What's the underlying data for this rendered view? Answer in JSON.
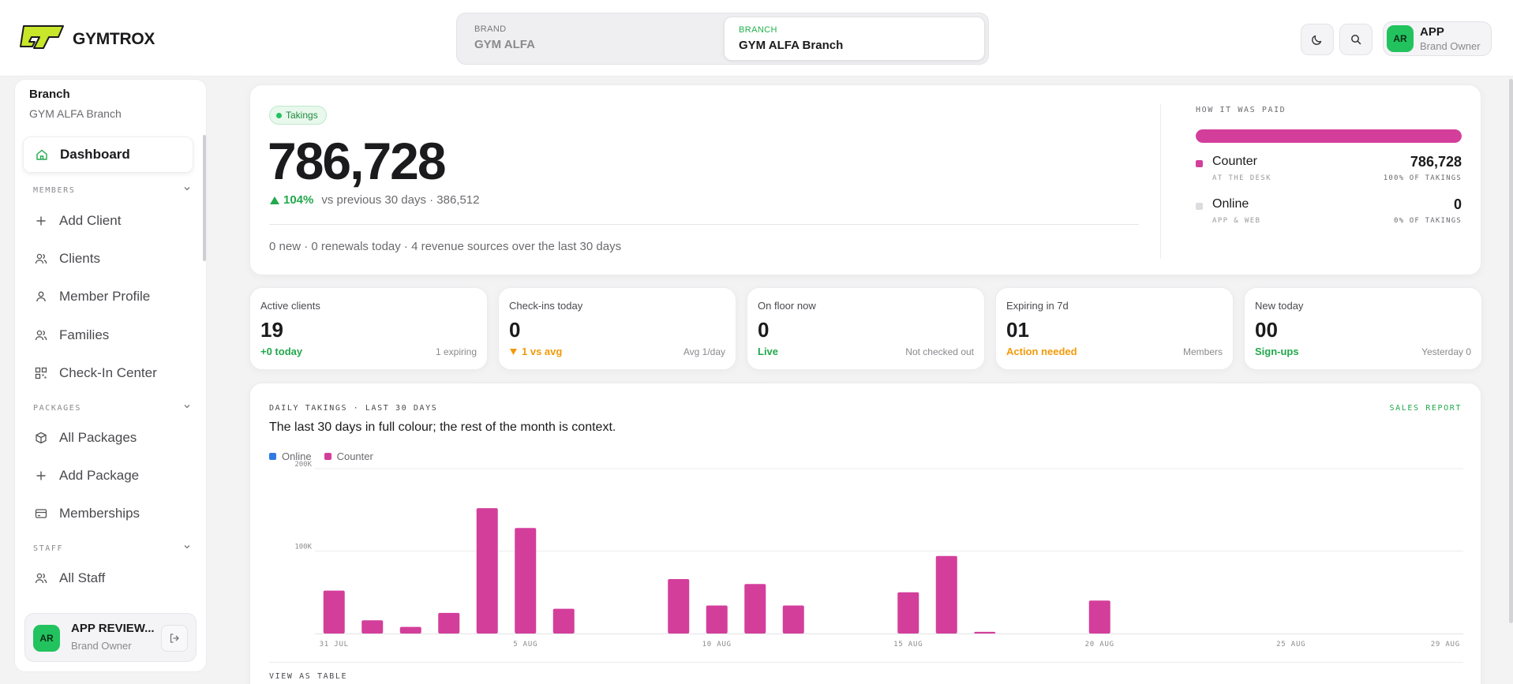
{
  "app": {
    "name": "GYMTROX"
  },
  "switcher": {
    "brand_label": "BRAND",
    "brand_value": "GYM ALFA",
    "branch_label": "BRANCH",
    "branch_value": "GYM ALFA Branch"
  },
  "user": {
    "initials": "AR",
    "name": "APP",
    "role": "Brand Owner"
  },
  "sidebar": {
    "head_label": "Branch",
    "head_value": "GYM ALFA Branch",
    "dashboard": "Dashboard",
    "sections": {
      "members": "MEMBERS",
      "packages": "PACKAGES",
      "staff": "STAFF"
    },
    "items": {
      "add_client": "Add Client",
      "clients": "Clients",
      "member_profile": "Member Profile",
      "families": "Families",
      "check_in_center": "Check-In Center",
      "all_packages": "All Packages",
      "add_package": "Add Package",
      "memberships": "Memberships",
      "all_staff": "All Staff"
    },
    "footer_user": {
      "initials": "AR",
      "name": "APP REVIEW...",
      "role": "Brand Owner"
    }
  },
  "takings": {
    "badge": "Takings",
    "value": "786,728",
    "delta_pct": "104%",
    "delta_text": "vs previous 30 days · 386,512",
    "footer": "0 new · 0 renewals today · 4 revenue sources over the last 30 days",
    "paid_title": "HOW IT WAS PAID",
    "counter_share": 1.0,
    "methods": [
      {
        "name": "Counter",
        "sub": "AT THE DESK",
        "value": "786,728",
        "pct": "100% OF TAKINGS",
        "color": "#d43e9b"
      },
      {
        "name": "Online",
        "sub": "APP & WEB",
        "value": "0",
        "pct": "0% OF TAKINGS",
        "color": "#dcdce0"
      }
    ]
  },
  "stats": [
    {
      "label": "Active clients",
      "value": "19",
      "sub": "+0 today",
      "sub_color": "#22a84c",
      "note": "1 expiring"
    },
    {
      "label": "Check-ins today",
      "value": "0",
      "sub": "1 vs avg",
      "sub_color": "#f29a0a",
      "note": "Avg 1/day"
    },
    {
      "label": "On floor now",
      "value": "0",
      "sub": "Live",
      "sub_color": "#22a84c",
      "note": "Not checked out"
    },
    {
      "label": "Expiring in 7d",
      "value": "01",
      "sub": "Action needed",
      "sub_color": "#f29a0a",
      "note": "Members"
    },
    {
      "label": "New today",
      "value": "00",
      "sub": "Sign-ups",
      "sub_color": "#22a84c",
      "note": "Yesterday 0"
    }
  ],
  "daily": {
    "title": "DAILY TAKINGS · LAST 30 DAYS",
    "link": "SALES REPORT",
    "subtitle": "The last 30 days in full colour; the rest of the month is context.",
    "table_link": "VIEW AS TABLE",
    "chart_data": {
      "type": "bar",
      "ylim": [
        0,
        200000
      ],
      "y_ticks": [
        "200K",
        "100K"
      ],
      "x_tick_labels": [
        "31 JUL",
        "5 AUG",
        "10 AUG",
        "15 AUG",
        "20 AUG",
        "25 AUG",
        "29 AUG"
      ],
      "x_tick_days": [
        0,
        5,
        10,
        15,
        20,
        25,
        29
      ],
      "series": [
        {
          "name": "Online",
          "color": "#2f7be0",
          "values": [
            0,
            0,
            0,
            0,
            0,
            0,
            0,
            0,
            0,
            0,
            0,
            0,
            0,
            0,
            0,
            0,
            0,
            0,
            0,
            0,
            0,
            0,
            0,
            0,
            0,
            0,
            0,
            0,
            0,
            0
          ]
        },
        {
          "name": "Counter",
          "color": "#d43e9b",
          "values": [
            52000,
            16000,
            8000,
            25000,
            152000,
            128000,
            30000,
            0,
            0,
            66000,
            34000,
            60000,
            34000,
            0,
            0,
            50000,
            94000,
            2000,
            0,
            0,
            40000,
            0,
            0,
            0,
            0,
            0,
            0,
            0,
            0,
            0
          ]
        }
      ]
    }
  }
}
